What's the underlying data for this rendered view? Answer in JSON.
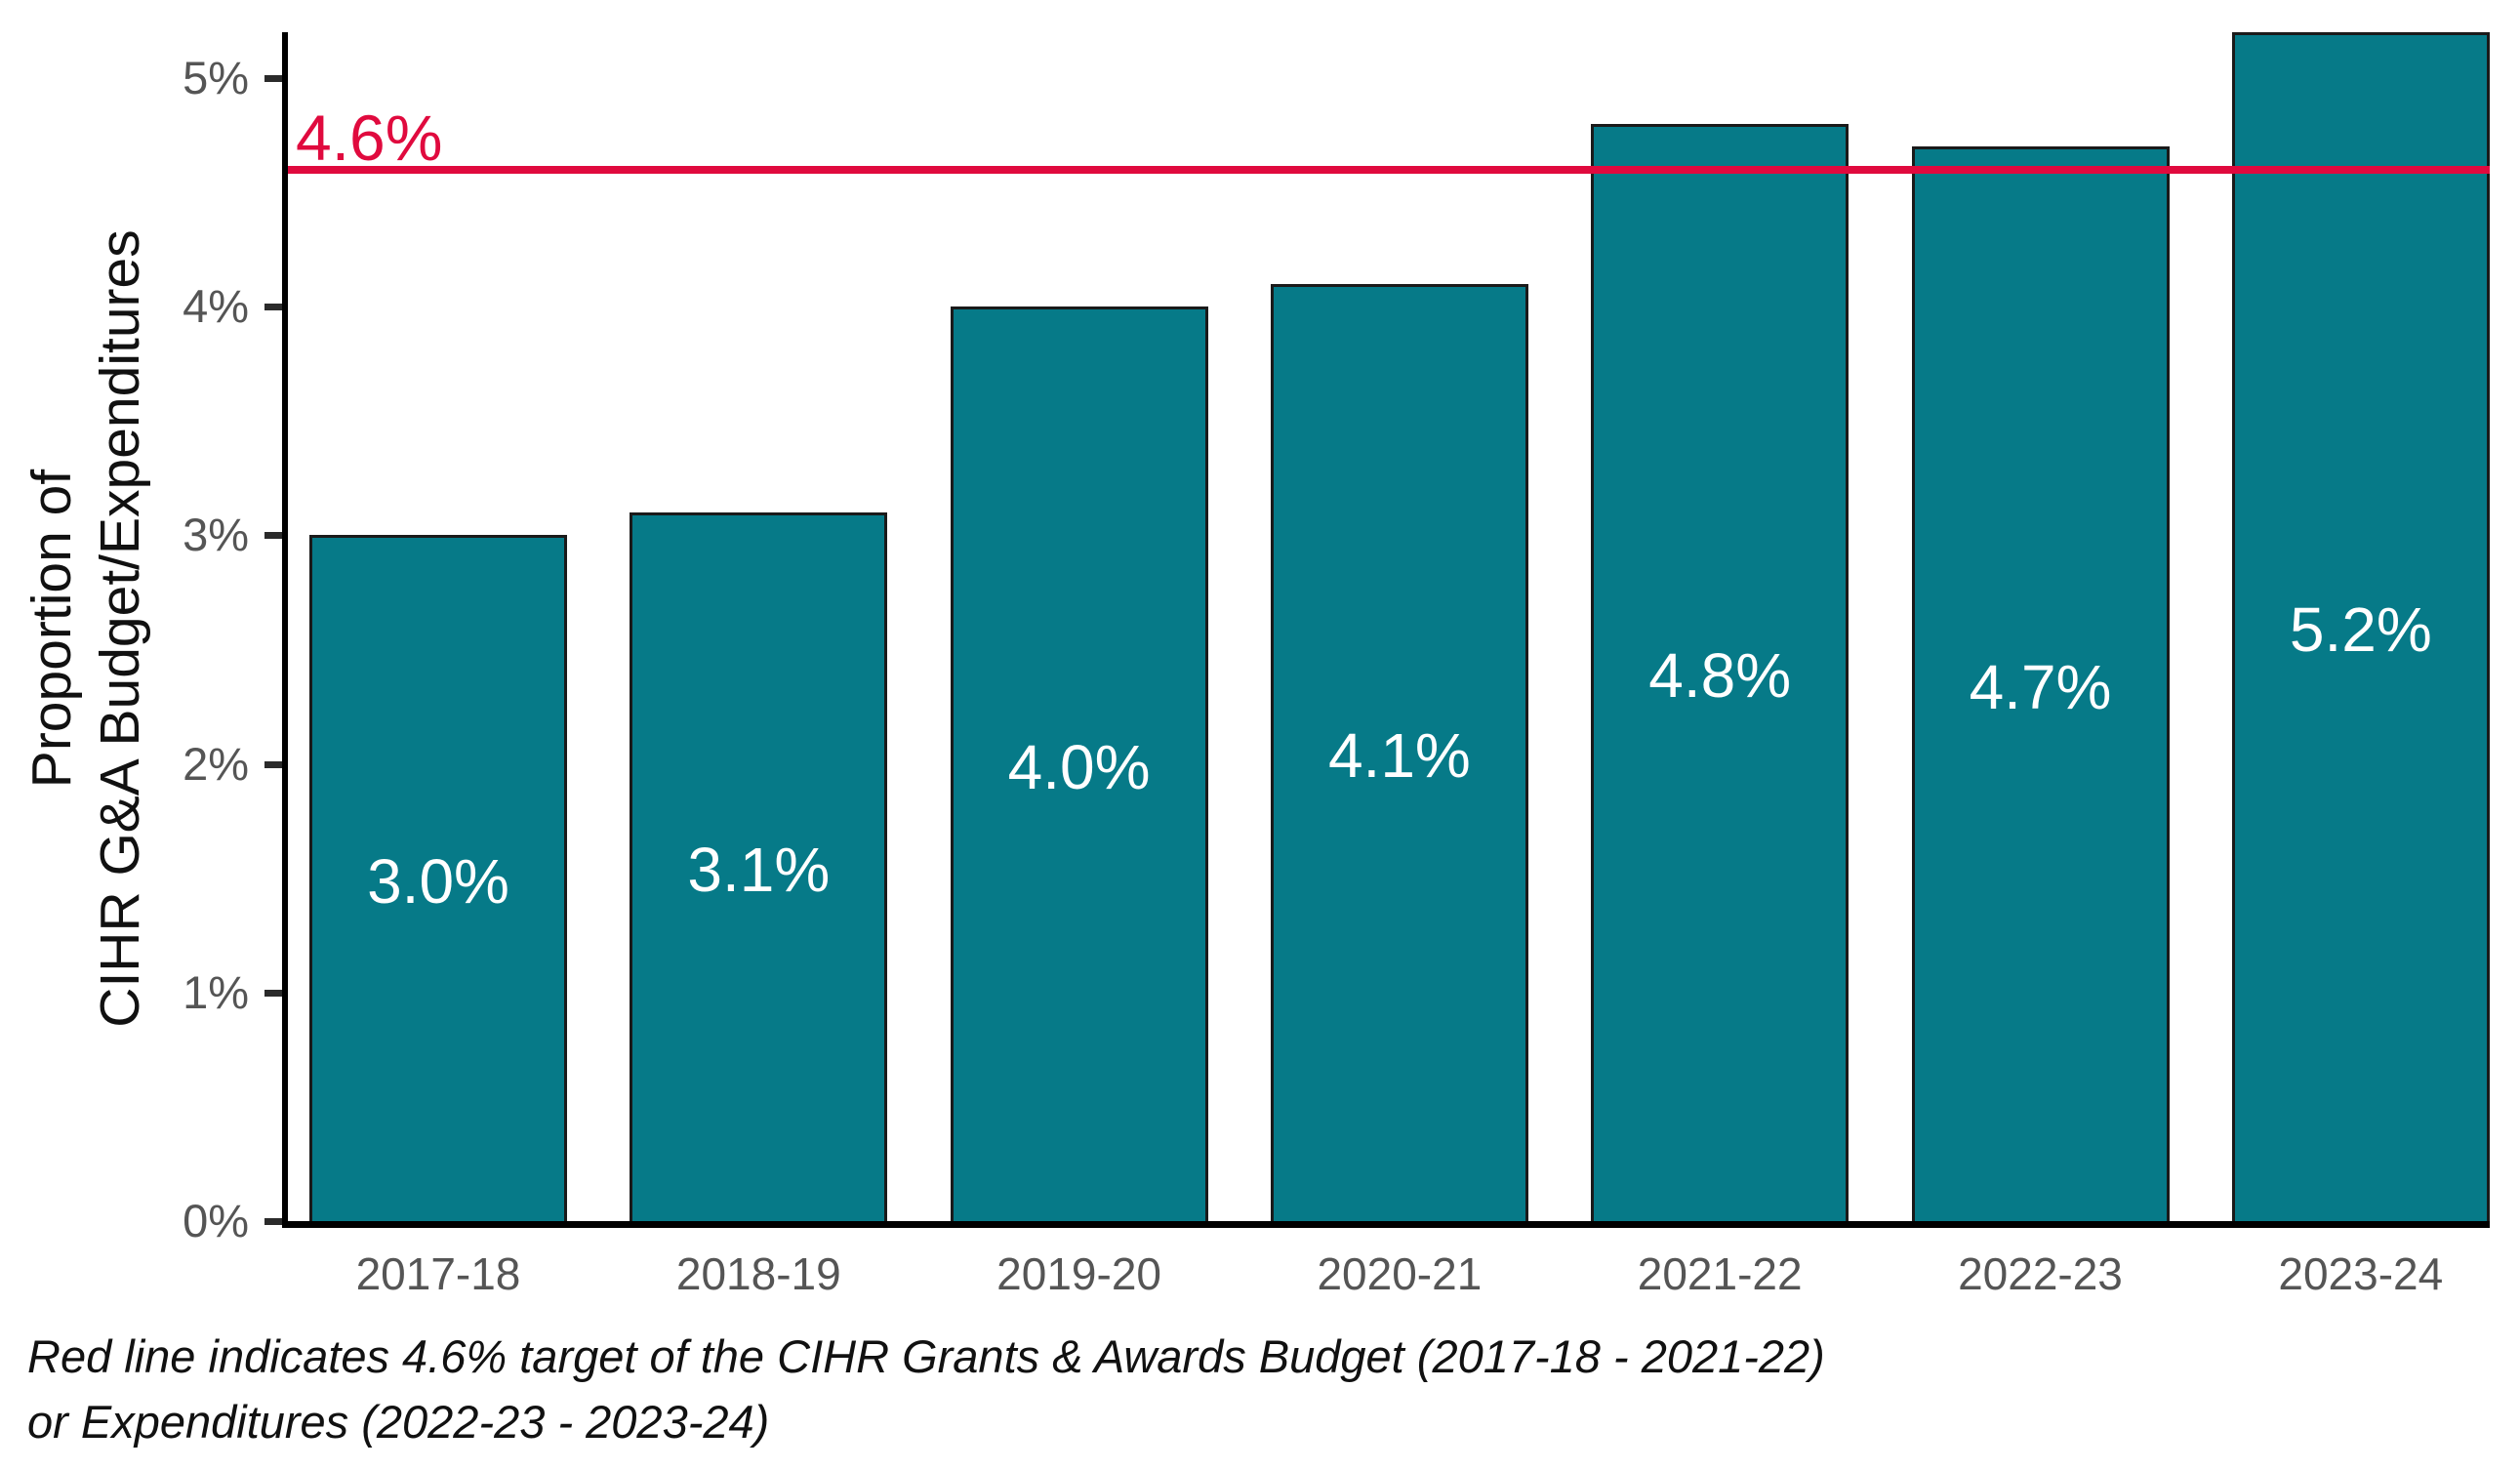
{
  "chart_data": {
    "type": "bar",
    "title": "",
    "categories": [
      "2017-18",
      "2018-19",
      "2019-20",
      "2020-21",
      "2021-22",
      "2022-23",
      "2023-24"
    ],
    "values": [
      3.0,
      3.1,
      4.0,
      4.1,
      4.8,
      4.7,
      5.2
    ],
    "bar_labels": [
      "3.0%",
      "3.1%",
      "4.0%",
      "4.1%",
      "4.8%",
      "4.7%",
      "5.2%"
    ],
    "xlabel": "",
    "ylabel_line1": "Proportion of",
    "ylabel_line2": "CIHR G&A Budget/Expenditures",
    "y_ticks": [
      "0%",
      "1%",
      "2%",
      "3%",
      "4%",
      "5%"
    ],
    "y_tick_values": [
      0,
      1,
      2,
      3,
      4,
      5
    ],
    "ylim": [
      0,
      5.2
    ],
    "grid": false,
    "legend": "none",
    "reference_line": {
      "value": 4.6,
      "label": "4.6%",
      "color": "#e00a3e"
    },
    "colors": {
      "bar_fill": "#067a88",
      "bar_border": "#1a1a1a",
      "axis": "#000000",
      "tick_label": "#555555",
      "bar_label_text": "#ffffff"
    },
    "caption_line1": "Red line indicates 4.6% target of the CIHR Grants & Awards Budget (2017-18 - 2021-22)",
    "caption_line2": "or Expenditures (2022-23 - 2023-24)"
  }
}
